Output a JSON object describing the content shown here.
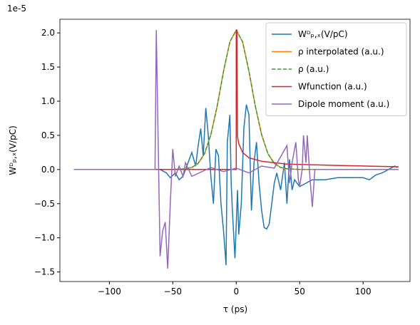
{
  "chart_data": {
    "type": "line",
    "x_label": "τ (ps)",
    "y_label": "Wᴰₚ,ₓ(V/pC)",
    "offset_label": "1e-5",
    "xlim": [
      -139,
      137
    ],
    "ylim": [
      -1.64,
      2.2
    ],
    "xticks": [
      {
        "value": -100,
        "label": "−100"
      },
      {
        "value": -50,
        "label": "−50"
      },
      0,
      50,
      100
    ],
    "yticks": [
      {
        "value": -1.5,
        "label": "−1.5"
      },
      {
        "value": -1,
        "label": "−1.0"
      },
      {
        "value": -0.5,
        "label": "−0.5"
      },
      {
        "value": 0,
        "label": "0.0"
      },
      {
        "value": 0.5,
        "label": "0.5"
      },
      {
        "value": 1,
        "label": "1.0"
      },
      {
        "value": 1.5,
        "label": "1.5"
      },
      {
        "value": 2,
        "label": "2.0"
      }
    ],
    "legend": "upper right",
    "series": [
      {
        "name": "Wᴰₚ,ₓ(V/pC)",
        "color": "#1f77b4",
        "dash": false,
        "x": [
          -128,
          -60,
          -55,
          -52,
          -48,
          -45,
          -42,
          -38,
          -35,
          -32,
          -30,
          -28,
          -26,
          -24,
          -22,
          -20,
          -18,
          -16,
          -14,
          -12,
          -10,
          -8,
          -7,
          -5,
          -4,
          -3,
          -1,
          1,
          2,
          4,
          6,
          8,
          10,
          12,
          14,
          16,
          18,
          20,
          22,
          24,
          26,
          28,
          30,
          32,
          35,
          38,
          40,
          42,
          44,
          46,
          50,
          55,
          60,
          70,
          80,
          90,
          100,
          105,
          110,
          115,
          120,
          125,
          127
        ],
        "values": [
          0,
          0,
          -0.05,
          -0.12,
          -0.05,
          -0.15,
          -0.1,
          0.1,
          0.25,
          0.05,
          0.35,
          0.6,
          0.2,
          0.9,
          0.5,
          -0.1,
          -0.5,
          0.3,
          0.2,
          -0.5,
          -0.9,
          -1.4,
          0.4,
          0.8,
          -0.2,
          -0.6,
          -1.3,
          -0.3,
          -0.95,
          -0.5,
          0.6,
          0.95,
          0.8,
          -0.6,
          0.1,
          0.4,
          -0.2,
          -0.6,
          -0.85,
          -0.87,
          -0.8,
          -0.5,
          -0.2,
          -0.05,
          -0.3,
          0.1,
          -0.5,
          0.15,
          -0.3,
          -0.15,
          -0.25,
          -0.2,
          -0.15,
          -0.15,
          -0.12,
          -0.12,
          -0.12,
          -0.15,
          -0.08,
          -0.05,
          0,
          0.05,
          0.03
        ]
      },
      {
        "name": "ρ interpolated (a.u.)",
        "color": "#ff7f0e",
        "dash": false,
        "x": [
          -128,
          -60,
          -50,
          -40,
          -35,
          -30,
          -25,
          -20,
          -15,
          -10,
          -5,
          0,
          5,
          10,
          15,
          20,
          25,
          30,
          35,
          40,
          50,
          60,
          128
        ],
        "values": [
          0,
          0,
          0,
          0.01,
          0.03,
          0.09,
          0.23,
          0.51,
          0.93,
          1.44,
          1.87,
          2.04,
          1.87,
          1.44,
          0.93,
          0.51,
          0.23,
          0.09,
          0.03,
          0.01,
          0,
          0,
          0
        ]
      },
      {
        "name": "ρ (a.u.)",
        "color": "#2ca02c",
        "dash": true,
        "x": [
          -128,
          -60,
          -50,
          -40,
          -35,
          -30,
          -25,
          -20,
          -15,
          -10,
          -5,
          0,
          5,
          10,
          15,
          20,
          25,
          30,
          35,
          40,
          50,
          60,
          128
        ],
        "values": [
          0,
          0,
          0,
          0.01,
          0.03,
          0.09,
          0.23,
          0.51,
          0.93,
          1.44,
          1.87,
          2.04,
          1.87,
          1.44,
          0.93,
          0.51,
          0.23,
          0.09,
          0.03,
          0.01,
          0,
          0,
          0
        ]
      },
      {
        "name": "Wfunction (a.u.)",
        "color": "#d62728",
        "dash": false,
        "x": [
          -128,
          0,
          0,
          0.5,
          1,
          2,
          5,
          10,
          20,
          40,
          80,
          128
        ],
        "values": [
          0,
          0,
          2.04,
          2.04,
          0.48,
          0.38,
          0.25,
          0.17,
          0.12,
          0.08,
          0.06,
          0.04
        ]
      },
      {
        "name": "Dipole moment (a.u.)",
        "color": "#9467bd",
        "dash": false,
        "x": [
          -128,
          -64,
          -63,
          -60,
          -58,
          -56,
          -54,
          -52,
          -50,
          -48,
          -45,
          -42,
          -40,
          -35,
          -20,
          -10,
          0,
          10,
          20,
          30,
          40,
          42,
          44,
          47,
          49,
          50,
          52,
          53,
          55,
          56,
          58,
          60,
          62,
          65,
          128
        ],
        "values": [
          0,
          0,
          2.04,
          -1.27,
          -0.9,
          -0.77,
          -1.45,
          -0.5,
          0.3,
          -0.1,
          0.05,
          -0.1,
          0.1,
          -0.1,
          0.03,
          -0.03,
          0.02,
          -0.05,
          0.05,
          0.02,
          0.35,
          -0.2,
          0.1,
          0.4,
          -0.15,
          -0.25,
          0,
          0.5,
          0.1,
          0.5,
          -0.1,
          -0.55,
          0,
          0,
          0
        ]
      }
    ]
  }
}
